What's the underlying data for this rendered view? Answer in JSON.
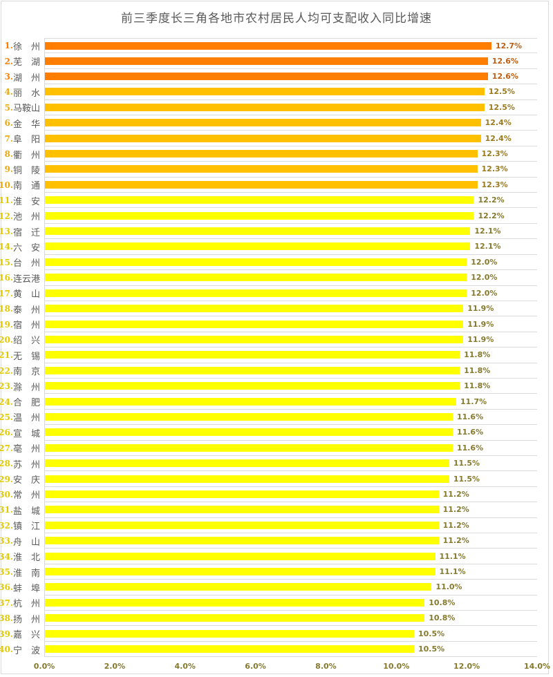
{
  "chart_data": {
    "type": "bar",
    "orientation": "horizontal",
    "title": "前三季度长三角各地市农村居民人均可支配收入同比增速",
    "xlabel": "",
    "ylabel": "",
    "xlim": [
      0,
      14
    ],
    "x_ticks": [
      "0.0%",
      "2.0%",
      "4.0%",
      "6.0%",
      "8.0%",
      "10.0%",
      "12.0%",
      "14.0%"
    ],
    "x_tick_values": [
      0,
      2,
      4,
      6,
      8,
      10,
      12,
      14
    ],
    "grid": "category-boundary-lines",
    "legend": "none",
    "value_suffix": "%",
    "colors": {
      "grid_line": "#d9d9d9",
      "title_text": "#595959",
      "city_text": "#595959",
      "axis_tick_text": "#857a2e"
    },
    "bar_colors": {
      "orange": "#ff7e00",
      "gold": "#ffc000",
      "yellow": "#ffff00"
    },
    "rank_colors": {
      "orange": "#ff7e00",
      "gold": "#e9a90d",
      "yellow": "#e2ca00"
    },
    "value_label_colors": {
      "orange": "#bd5f13",
      "gold": "#9a7a1d",
      "yellow": "#857a2e"
    },
    "rows": [
      {
        "rank": "1.",
        "name": "徐　州",
        "city": "徐州",
        "value": 12.7,
        "label": "12.7%",
        "tier": "orange"
      },
      {
        "rank": "2.",
        "name": "芜　湖",
        "city": "芜湖",
        "value": 12.6,
        "label": "12.6%",
        "tier": "orange"
      },
      {
        "rank": "3.",
        "name": "湖　州",
        "city": "湖州",
        "value": 12.6,
        "label": "12.6%",
        "tier": "orange"
      },
      {
        "rank": "4.",
        "name": "丽　水",
        "city": "丽水",
        "value": 12.5,
        "label": "12.5%",
        "tier": "gold"
      },
      {
        "rank": "5.",
        "name": "马鞍山",
        "city": "马鞍山",
        "value": 12.5,
        "label": "12.5%",
        "tier": "gold"
      },
      {
        "rank": "6.",
        "name": "金　华",
        "city": "金华",
        "value": 12.4,
        "label": "12.4%",
        "tier": "gold"
      },
      {
        "rank": "7.",
        "name": "阜　阳",
        "city": "阜阳",
        "value": 12.4,
        "label": "12.4%",
        "tier": "gold"
      },
      {
        "rank": "8.",
        "name": "衢　州",
        "city": "衢州",
        "value": 12.3,
        "label": "12.3%",
        "tier": "gold"
      },
      {
        "rank": "9.",
        "name": "铜　陵",
        "city": "铜陵",
        "value": 12.3,
        "label": "12.3%",
        "tier": "gold"
      },
      {
        "rank": "10.",
        "name": "南　通",
        "city": "南通",
        "value": 12.3,
        "label": "12.3%",
        "tier": "gold"
      },
      {
        "rank": "11.",
        "name": "淮　安",
        "city": "淮安",
        "value": 12.2,
        "label": "12.2%",
        "tier": "yellow"
      },
      {
        "rank": "12.",
        "name": "池　州",
        "city": "池州",
        "value": 12.2,
        "label": "12.2%",
        "tier": "yellow"
      },
      {
        "rank": "13.",
        "name": "宿　迁",
        "city": "宿迁",
        "value": 12.1,
        "label": "12.1%",
        "tier": "yellow"
      },
      {
        "rank": "14.",
        "name": "六　安",
        "city": "六安",
        "value": 12.1,
        "label": "12.1%",
        "tier": "yellow"
      },
      {
        "rank": "15.",
        "name": "台　州",
        "city": "台州",
        "value": 12.0,
        "label": "12.0%",
        "tier": "yellow"
      },
      {
        "rank": "16.",
        "name": "连云港",
        "city": "连云港",
        "value": 12.0,
        "label": "12.0%",
        "tier": "yellow"
      },
      {
        "rank": "17.",
        "name": "黄　山",
        "city": "黄山",
        "value": 12.0,
        "label": "12.0%",
        "tier": "yellow"
      },
      {
        "rank": "18.",
        "name": "泰　州",
        "city": "泰州",
        "value": 11.9,
        "label": "11.9%",
        "tier": "yellow"
      },
      {
        "rank": "19.",
        "name": "宿　州",
        "city": "宿州",
        "value": 11.9,
        "label": "11.9%",
        "tier": "yellow"
      },
      {
        "rank": "20.",
        "name": "绍　兴",
        "city": "绍兴",
        "value": 11.9,
        "label": "11.9%",
        "tier": "yellow"
      },
      {
        "rank": "21.",
        "name": "无　锡",
        "city": "无锡",
        "value": 11.8,
        "label": "11.8%",
        "tier": "yellow"
      },
      {
        "rank": "22.",
        "name": "南　京",
        "city": "南京",
        "value": 11.8,
        "label": "11.8%",
        "tier": "yellow"
      },
      {
        "rank": "23.",
        "name": "滁　州",
        "city": "滁州",
        "value": 11.8,
        "label": "11.8%",
        "tier": "yellow"
      },
      {
        "rank": "24.",
        "name": "合　肥",
        "city": "合肥",
        "value": 11.7,
        "label": "11.7%",
        "tier": "yellow"
      },
      {
        "rank": "25.",
        "name": "温　州",
        "city": "温州",
        "value": 11.6,
        "label": "11.6%",
        "tier": "yellow"
      },
      {
        "rank": "26.",
        "name": "宣　城",
        "city": "宣城",
        "value": 11.6,
        "label": "11.6%",
        "tier": "yellow"
      },
      {
        "rank": "27.",
        "name": "亳　州",
        "city": "亳州",
        "value": 11.6,
        "label": "11.6%",
        "tier": "yellow"
      },
      {
        "rank": "28.",
        "name": "苏　州",
        "city": "苏州",
        "value": 11.5,
        "label": "11.5%",
        "tier": "yellow"
      },
      {
        "rank": "29.",
        "name": "安　庆",
        "city": "安庆",
        "value": 11.5,
        "label": "11.5%",
        "tier": "yellow"
      },
      {
        "rank": "30.",
        "name": "常　州",
        "city": "常州",
        "value": 11.2,
        "label": "11.2%",
        "tier": "yellow"
      },
      {
        "rank": "31.",
        "name": "盐　城",
        "city": "盐城",
        "value": 11.2,
        "label": "11.2%",
        "tier": "yellow"
      },
      {
        "rank": "32.",
        "name": "镇　江",
        "city": "镇江",
        "value": 11.2,
        "label": "11.2%",
        "tier": "yellow"
      },
      {
        "rank": "33.",
        "name": "舟　山",
        "city": "舟山",
        "value": 11.2,
        "label": "11.2%",
        "tier": "yellow"
      },
      {
        "rank": "34.",
        "name": "淮　北",
        "city": "淮北",
        "value": 11.1,
        "label": "11.1%",
        "tier": "yellow"
      },
      {
        "rank": "35.",
        "name": "淮　南",
        "city": "淮南",
        "value": 11.1,
        "label": "11.1%",
        "tier": "yellow"
      },
      {
        "rank": "36.",
        "name": "蚌　埠",
        "city": "蚌埠",
        "value": 11.0,
        "label": "11.0%",
        "tier": "yellow"
      },
      {
        "rank": "37.",
        "name": "杭　州",
        "city": "杭州",
        "value": 10.8,
        "label": "10.8%",
        "tier": "yellow"
      },
      {
        "rank": "38.",
        "name": "扬　州",
        "city": "扬州",
        "value": 10.8,
        "label": "10.8%",
        "tier": "yellow"
      },
      {
        "rank": "39.",
        "name": "嘉　兴",
        "city": "嘉兴",
        "value": 10.5,
        "label": "10.5%",
        "tier": "yellow"
      },
      {
        "rank": "40.",
        "name": "宁　波",
        "city": "宁波",
        "value": 10.5,
        "label": "10.5%",
        "tier": "yellow"
      }
    ]
  }
}
